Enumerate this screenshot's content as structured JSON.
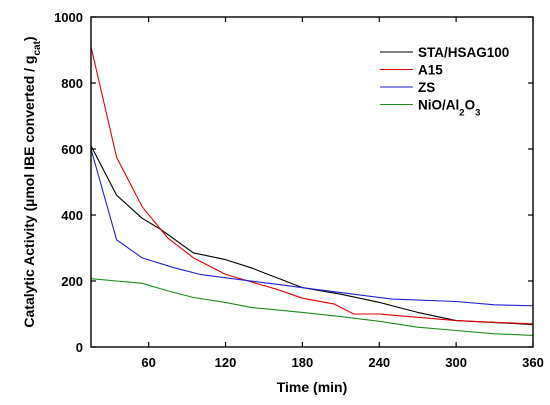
{
  "chart_data": {
    "type": "line",
    "xlabel": "Time (min)",
    "ylabel_parts": [
      "Catalytic Activity (µmol IBE converted / g",
      "cat",
      ")"
    ],
    "xlim": [
      15,
      360
    ],
    "ylim": [
      0,
      1000
    ],
    "x_ticks": [
      60,
      120,
      180,
      240,
      300,
      360
    ],
    "y_ticks": [
      0,
      200,
      400,
      600,
      800,
      1000
    ],
    "grid": false,
    "legend_position": "top-right",
    "series": [
      {
        "name": "STA/HSAG100",
        "name_parts": [
          [
            "STA/HSAG100",
            ""
          ]
        ],
        "color": "#000000",
        "points": [
          [
            15,
            610
          ],
          [
            35,
            460
          ],
          [
            55,
            390
          ],
          [
            70,
            355
          ],
          [
            95,
            285
          ],
          [
            120,
            265
          ],
          [
            140,
            240
          ],
          [
            180,
            180
          ],
          [
            210,
            160
          ],
          [
            240,
            135
          ],
          [
            270,
            105
          ],
          [
            300,
            80
          ],
          [
            340,
            72
          ],
          [
            360,
            68
          ]
        ]
      },
      {
        "name": "A15",
        "name_parts": [
          [
            "A15",
            ""
          ]
        ],
        "color": "#e60000",
        "points": [
          [
            15,
            910
          ],
          [
            35,
            575
          ],
          [
            55,
            425
          ],
          [
            75,
            330
          ],
          [
            95,
            270
          ],
          [
            120,
            220
          ],
          [
            160,
            175
          ],
          [
            180,
            148
          ],
          [
            205,
            130
          ],
          [
            220,
            100
          ],
          [
            240,
            100
          ],
          [
            300,
            80
          ],
          [
            330,
            75
          ],
          [
            360,
            70
          ]
        ]
      },
      {
        "name": "ZS",
        "name_parts": [
          [
            "ZS",
            ""
          ]
        ],
        "color": "#1f1fd6",
        "points": [
          [
            15,
            600
          ],
          [
            35,
            325
          ],
          [
            55,
            270
          ],
          [
            80,
            240
          ],
          [
            100,
            220
          ],
          [
            130,
            205
          ],
          [
            160,
            190
          ],
          [
            190,
            175
          ],
          [
            220,
            160
          ],
          [
            250,
            145
          ],
          [
            300,
            138
          ],
          [
            330,
            128
          ],
          [
            360,
            125
          ]
        ]
      },
      {
        "name": "NiO/Al2O3",
        "name_parts": [
          [
            "NiO/Al",
            ""
          ],
          [
            "2",
            "sub"
          ],
          [
            "O",
            ""
          ],
          [
            "3",
            "sub"
          ]
        ],
        "color": "#1e8c1e",
        "points": [
          [
            15,
            207
          ],
          [
            35,
            200
          ],
          [
            55,
            193
          ],
          [
            75,
            170
          ],
          [
            95,
            150
          ],
          [
            120,
            135
          ],
          [
            140,
            120
          ],
          [
            180,
            105
          ],
          [
            210,
            92
          ],
          [
            240,
            78
          ],
          [
            270,
            60
          ],
          [
            300,
            50
          ],
          [
            330,
            40
          ],
          [
            360,
            35
          ]
        ]
      }
    ]
  }
}
